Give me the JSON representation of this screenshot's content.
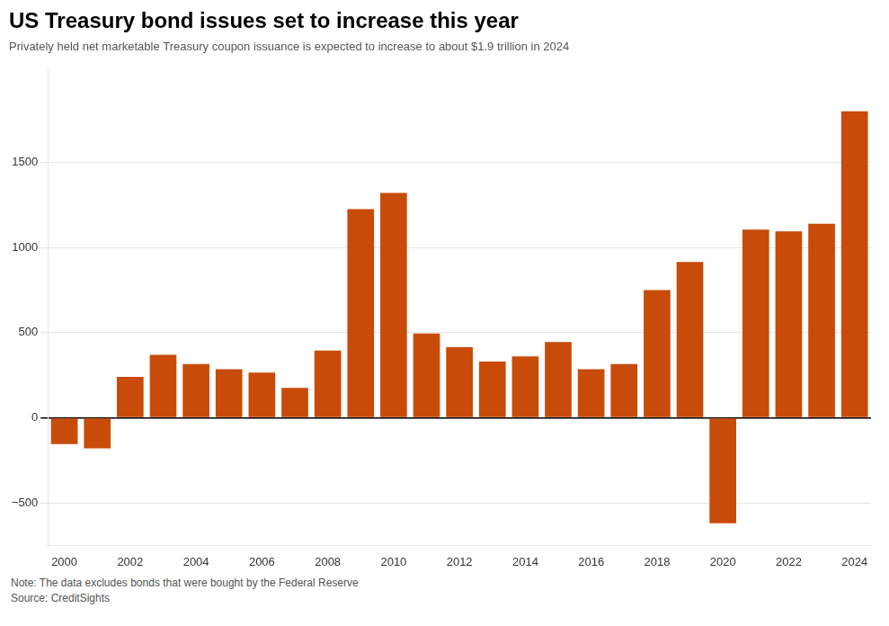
{
  "chart_data": {
    "type": "bar",
    "title": "US Treasury bond issues set to increase this year",
    "subtitle": "Privately held net marketable Treasury coupon issuance is expected to increase to about $1.9 trillion in 2024",
    "note": "Note: The data excludes bonds that were bought by the Federal Reserve",
    "source": "Source: CreditSights",
    "categories": [
      "2000",
      null,
      "2002",
      null,
      "2004",
      null,
      "2006",
      null,
      "2008",
      null,
      "2010",
      null,
      "2012",
      null,
      "2014",
      null,
      "2016",
      null,
      "2018",
      null,
      "2020",
      null,
      "2022",
      null,
      "2024"
    ],
    "values": [
      -155,
      -180,
      240,
      370,
      315,
      285,
      265,
      175,
      395,
      1225,
      1320,
      495,
      415,
      330,
      360,
      445,
      285,
      315,
      750,
      915,
      -620,
      1105,
      1095,
      1140,
      1800
    ],
    "color": "#C84B0A",
    "ylim": [
      -750,
      2050
    ],
    "yticks": [
      {
        "value": -500,
        "label": "−500"
      },
      0,
      500,
      1000,
      1500
    ],
    "grid": true
  }
}
